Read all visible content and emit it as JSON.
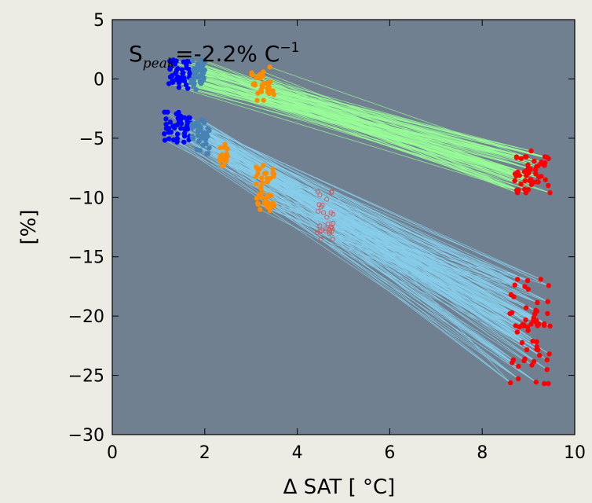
{
  "chart_data": {
    "type": "scatter",
    "title": "",
    "annotation": {
      "prefix": "S",
      "subscript": "peak",
      "value": "=-2.2% C",
      "superscript": "−1"
    },
    "xlabel": "Δ SAT [ °C]",
    "ylabel": "[%]",
    "xlim": [
      0,
      10
    ],
    "ylim": [
      -30,
      5
    ],
    "xticks": [
      "0",
      "2",
      "4",
      "6",
      "8",
      "10"
    ],
    "yticks": [
      "5",
      "0",
      "−5",
      "−10",
      "−15",
      "−20",
      "−25",
      "−30"
    ],
    "grid": false,
    "legend": "none",
    "background": "#708090",
    "line_colors": {
      "upper": "#98fb98",
      "lower": "#87ceeb"
    },
    "series": [
      {
        "group": "upper",
        "color": "#0000ff",
        "x_range": [
          1.2,
          1.7
        ],
        "y_range": [
          -0.8,
          1.6
        ],
        "n": 40,
        "marker": "filled"
      },
      {
        "group": "upper",
        "color": "#4682b4",
        "x_range": [
          1.7,
          2.0
        ],
        "y_range": [
          -0.9,
          1.9
        ],
        "n": 40,
        "marker": "filled"
      },
      {
        "group": "upper",
        "color": "#ff8c00",
        "x_range": [
          3.0,
          3.5
        ],
        "y_range": [
          -1.8,
          1.0
        ],
        "n": 30,
        "marker": "filled"
      },
      {
        "group": "upper",
        "color": "#ff0000",
        "x_range": [
          8.7,
          9.5
        ],
        "y_range": [
          -9.6,
          -6.0
        ],
        "n": 50,
        "marker": "filled"
      },
      {
        "group": "lower",
        "color": "#0000ff",
        "x_range": [
          1.1,
          1.7
        ],
        "y_range": [
          -5.6,
          -2.8
        ],
        "n": 45,
        "marker": "filled"
      },
      {
        "group": "lower",
        "color": "#4682b4",
        "x_range": [
          1.7,
          2.1
        ],
        "y_range": [
          -6.3,
          -3.4
        ],
        "n": 45,
        "marker": "filled"
      },
      {
        "group": "lower",
        "color": "#ff8c00",
        "x_range": [
          2.3,
          2.5
        ],
        "y_range": [
          -7.5,
          -5.5
        ],
        "n": 20,
        "marker": "filled"
      },
      {
        "group": "lower",
        "color": "#ff8c00",
        "x_range": [
          3.1,
          3.5
        ],
        "y_range": [
          -11.1,
          -7.3
        ],
        "n": 40,
        "marker": "filled"
      },
      {
        "group": "lower",
        "color": "#cd5c5c",
        "x_range": [
          4.4,
          4.8
        ],
        "y_range": [
          -13.5,
          -9.5
        ],
        "n": 30,
        "marker": "hollow"
      },
      {
        "group": "lower",
        "color": "#ff0000",
        "x_range": [
          8.6,
          9.5
        ],
        "y_range": [
          -25.7,
          -16.9
        ],
        "n": 60,
        "marker": "filled"
      }
    ]
  }
}
